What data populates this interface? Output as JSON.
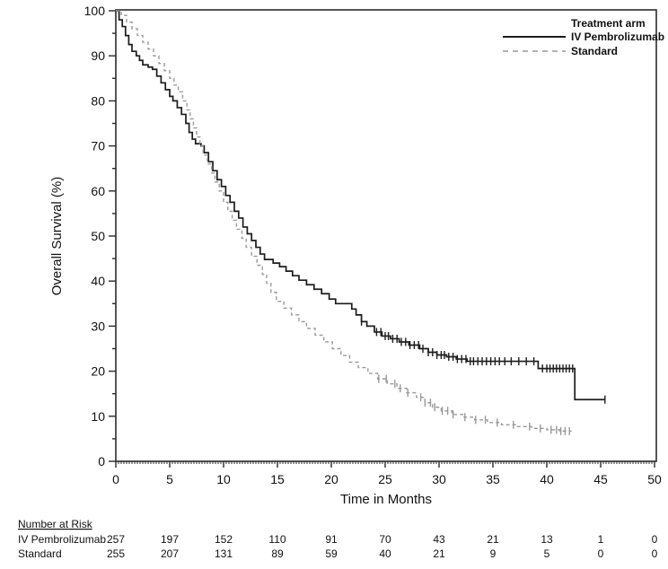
{
  "chart_data": {
    "type": "line",
    "subtype": "kaplan-meier-step",
    "title": "",
    "xlabel": "Time in Months",
    "ylabel": "Overall Survival (%)",
    "xlim": [
      0,
      50
    ],
    "ylim": [
      0,
      100
    ],
    "x_major_ticks": [
      0,
      5,
      10,
      15,
      20,
      25,
      30,
      35,
      40,
      45,
      50
    ],
    "y_major_ticks": [
      0,
      10,
      20,
      30,
      40,
      50,
      60,
      70,
      80,
      90,
      100
    ],
    "y_minor_step": 5,
    "x_minor_step": 0.25,
    "grid": false,
    "frame": true,
    "colors": {
      "pembrolizumab": "#1c1c1c",
      "standard": "#9a9a9a",
      "axis": "#2b2b2b"
    },
    "legend": {
      "position": "top-right",
      "title": "Treatment arm",
      "entries": [
        {
          "label": "IV Pembrolizumab",
          "style": "solid",
          "color": "#1c1c1c"
        },
        {
          "label": "Standard",
          "style": "dashed",
          "color": "#9a9a9a"
        }
      ]
    },
    "series": [
      {
        "name": "IV Pembrolizumab",
        "color": "#1c1c1c",
        "line": "solid",
        "end_month": 45.4,
        "points": [
          [
            0,
            100
          ],
          [
            0.3,
            98
          ],
          [
            0.6,
            96.5
          ],
          [
            0.9,
            94.5
          ],
          [
            1.2,
            92.5
          ],
          [
            1.5,
            91
          ],
          [
            1.9,
            90
          ],
          [
            2.2,
            89
          ],
          [
            2.5,
            88
          ],
          [
            3.0,
            87.5
          ],
          [
            3.4,
            87
          ],
          [
            3.8,
            85.5
          ],
          [
            4.2,
            84
          ],
          [
            4.6,
            82.5
          ],
          [
            5.0,
            81
          ],
          [
            5.3,
            80
          ],
          [
            5.7,
            78.5
          ],
          [
            6.1,
            77
          ],
          [
            6.5,
            75
          ],
          [
            6.8,
            73
          ],
          [
            7.1,
            71.5
          ],
          [
            7.4,
            70.5
          ],
          [
            7.9,
            70
          ],
          [
            8.2,
            68.5
          ],
          [
            8.6,
            66.5
          ],
          [
            9.0,
            64.5
          ],
          [
            9.4,
            62.5
          ],
          [
            9.8,
            61
          ],
          [
            10.2,
            59
          ],
          [
            10.6,
            57.5
          ],
          [
            11.0,
            55.5
          ],
          [
            11.4,
            54
          ],
          [
            11.8,
            52
          ],
          [
            12.2,
            50.5
          ],
          [
            12.6,
            49
          ],
          [
            13.0,
            47.5
          ],
          [
            13.4,
            46
          ],
          [
            13.8,
            44.8
          ],
          [
            14.6,
            44
          ],
          [
            15.2,
            43.2
          ],
          [
            15.8,
            42.2
          ],
          [
            16.4,
            41.2
          ],
          [
            17.0,
            40.2
          ],
          [
            17.7,
            39.2
          ],
          [
            18.4,
            38.2
          ],
          [
            19.1,
            37.2
          ],
          [
            19.8,
            36
          ],
          [
            20.4,
            35
          ],
          [
            21.9,
            33.8
          ],
          [
            22.3,
            32.5
          ],
          [
            22.8,
            31
          ],
          [
            23.3,
            30
          ],
          [
            24.0,
            28.7
          ],
          [
            24.7,
            27.8
          ],
          [
            25.5,
            27.2
          ],
          [
            26.3,
            26.5
          ],
          [
            27.2,
            25.8
          ],
          [
            28.2,
            25
          ],
          [
            29.0,
            24.2
          ],
          [
            29.8,
            23.6
          ],
          [
            30.7,
            23.2
          ],
          [
            31.6,
            22.7
          ],
          [
            32.6,
            22.2
          ],
          [
            39.2,
            20.6
          ],
          [
            42.6,
            13.7
          ]
        ],
        "censor_months": [
          22.8,
          24.2,
          24.6,
          25.0,
          25.3,
          25.7,
          26.1,
          26.5,
          26.9,
          27.3,
          27.7,
          28.1,
          28.5,
          29.0,
          29.4,
          29.8,
          30.2,
          30.5,
          30.9,
          31.3,
          31.7,
          32.1,
          32.5,
          32.9,
          33.2,
          33.6,
          34.0,
          34.4,
          34.8,
          35.2,
          35.6,
          36.1,
          36.7,
          37.4,
          38.1,
          38.8,
          39.6,
          40.0,
          40.3,
          40.6,
          40.9,
          41.2,
          41.5,
          41.8,
          42.1,
          42.4,
          45.4
        ]
      },
      {
        "name": "Standard",
        "color": "#9a9a9a",
        "line": "dashed",
        "end_month": 42.3,
        "points": [
          [
            0,
            100
          ],
          [
            0.5,
            99
          ],
          [
            1.0,
            97.5
          ],
          [
            1.5,
            96
          ],
          [
            2.0,
            94.5
          ],
          [
            2.5,
            93
          ],
          [
            3.0,
            91.5
          ],
          [
            3.5,
            90
          ],
          [
            4.0,
            88.3
          ],
          [
            4.5,
            86.7
          ],
          [
            5.0,
            85
          ],
          [
            5.4,
            83.5
          ],
          [
            5.8,
            82
          ],
          [
            6.2,
            80
          ],
          [
            6.6,
            78
          ],
          [
            6.9,
            76
          ],
          [
            7.2,
            74
          ],
          [
            7.5,
            72
          ],
          [
            7.8,
            70
          ],
          [
            8.1,
            68
          ],
          [
            8.5,
            66
          ],
          [
            8.9,
            64
          ],
          [
            9.2,
            62
          ],
          [
            9.6,
            60
          ],
          [
            10.0,
            57.5
          ],
          [
            10.4,
            55.5
          ],
          [
            10.8,
            53.5
          ],
          [
            11.2,
            51.5
          ],
          [
            11.7,
            49.5
          ],
          [
            12.1,
            47.5
          ],
          [
            12.6,
            45.5
          ],
          [
            13.1,
            43.5
          ],
          [
            13.6,
            41.5
          ],
          [
            14.0,
            39.5
          ],
          [
            14.4,
            37.5
          ],
          [
            14.9,
            35.5
          ],
          [
            15.6,
            34
          ],
          [
            16.3,
            32.5
          ],
          [
            17.0,
            31
          ],
          [
            17.7,
            29.5
          ],
          [
            18.5,
            28
          ],
          [
            19.3,
            26.5
          ],
          [
            20.1,
            25
          ],
          [
            20.9,
            23.5
          ],
          [
            21.7,
            22
          ],
          [
            22.5,
            20.8
          ],
          [
            23.4,
            19.5
          ],
          [
            24.3,
            18.3
          ],
          [
            25.2,
            17.2
          ],
          [
            26.1,
            16.2
          ],
          [
            27.0,
            15.2
          ],
          [
            27.9,
            14.2
          ],
          [
            28.7,
            13
          ],
          [
            29.4,
            12
          ],
          [
            30.2,
            11.2
          ],
          [
            31.2,
            10.4
          ],
          [
            32.2,
            9.8
          ],
          [
            33.3,
            9.2
          ],
          [
            34.5,
            8.6
          ],
          [
            35.8,
            8.1
          ],
          [
            37.2,
            7.7
          ],
          [
            38.6,
            7.3
          ],
          [
            40.0,
            7.0
          ],
          [
            41.2,
            6.7
          ]
        ],
        "censor_months": [
          24.4,
          25.1,
          25.9,
          26.4,
          27.1,
          28.3,
          28.7,
          29.2,
          29.6,
          30.3,
          30.8,
          31.3,
          32.4,
          33.4,
          34.3,
          35.4,
          36.9,
          38.4,
          39.4,
          40.4,
          40.9,
          41.3,
          41.7,
          42.1
        ]
      }
    ],
    "number_at_risk": {
      "heading": "Number at Risk",
      "months": [
        0,
        5,
        10,
        15,
        20,
        25,
        30,
        35,
        40,
        45,
        50
      ],
      "rows": [
        {
          "label": "IV Pembrolizumab",
          "counts": [
            257,
            197,
            152,
            110,
            91,
            70,
            43,
            21,
            13,
            1,
            0
          ]
        },
        {
          "label": "Standard",
          "counts": [
            255,
            207,
            131,
            89,
            59,
            40,
            21,
            9,
            5,
            0,
            0
          ]
        }
      ]
    }
  }
}
